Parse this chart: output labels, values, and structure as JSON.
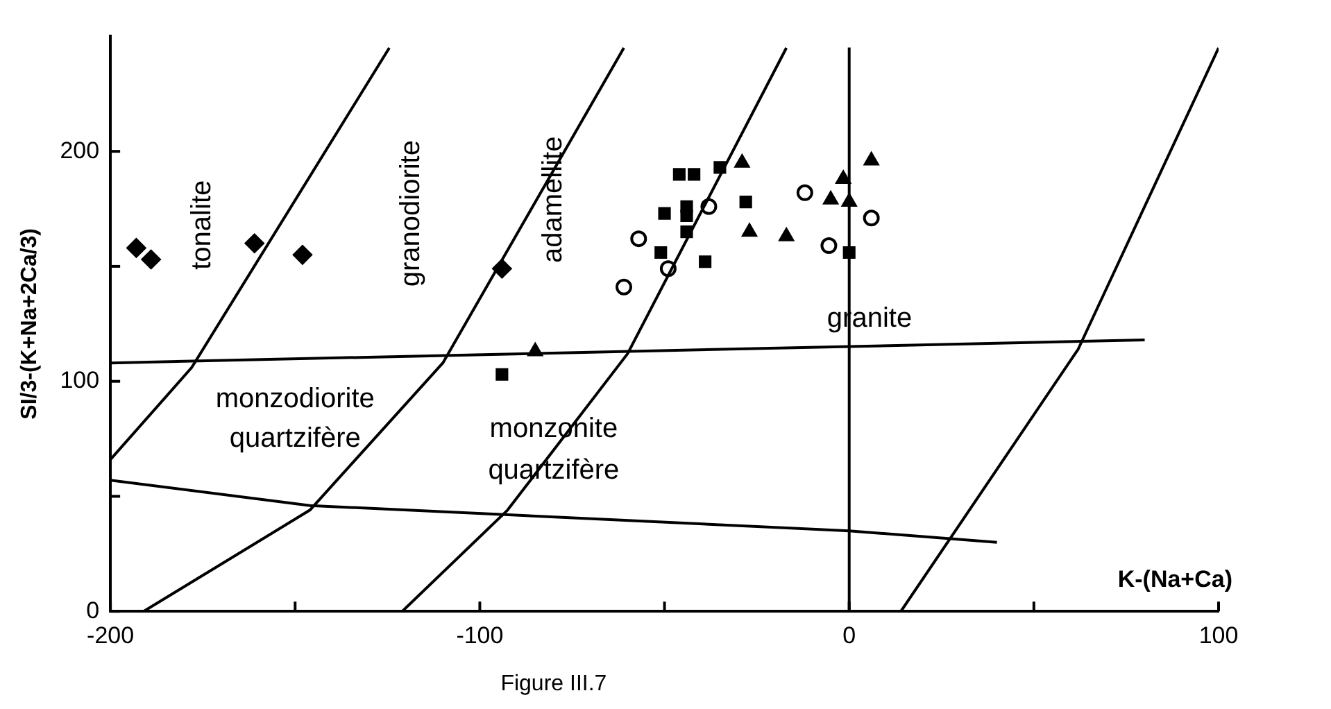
{
  "chart_data": {
    "type": "scatter",
    "xlabel": "K-(Na+Ca)",
    "ylabel": "SI/3-(K+Na+2Ca/3)",
    "xlim": [
      -200,
      100
    ],
    "ylim": [
      0,
      250
    ],
    "xticks": [
      -200,
      {
        "value": -150,
        "label": null
      },
      -100,
      {
        "value": -50,
        "label": null
      },
      0,
      {
        "value": 50,
        "label": null
      },
      100
    ],
    "yticks": [
      0,
      {
        "value": 50,
        "label": null
      },
      100,
      {
        "value": 150,
        "label": null
      },
      200
    ],
    "grid": false,
    "legend": false,
    "series": [
      {
        "type": "line",
        "marker": "none",
        "color": "#000000",
        "x": [
          -200,
          -178,
          -124.5
        ],
        "values": [
          66,
          106,
          245
        ]
      },
      {
        "type": "line",
        "marker": "none",
        "color": "#000000",
        "x": [
          -191,
          -146,
          -110,
          -61
        ],
        "values": [
          0,
          44,
          108,
          245
        ]
      },
      {
        "type": "line",
        "marker": "none",
        "color": "#000000",
        "x": [
          -121,
          -92.5,
          -60,
          -17
        ],
        "values": [
          0,
          44,
          112,
          245
        ]
      },
      {
        "type": "line",
        "marker": "none",
        "color": "#000000",
        "x": [
          14,
          62,
          100
        ],
        "values": [
          0,
          114,
          245
        ]
      },
      {
        "type": "line",
        "marker": "none",
        "color": "#000000",
        "x": [
          -200,
          80
        ],
        "values": [
          108,
          118
        ]
      },
      {
        "type": "line",
        "marker": "none",
        "color": "#000000",
        "x": [
          -200,
          -146,
          0,
          40
        ],
        "values": [
          57,
          46,
          35,
          30
        ]
      },
      {
        "marker": "diamond",
        "color": "#000000",
        "x": [
          -193,
          -189,
          -161,
          -148,
          -94
        ],
        "values": [
          158,
          153,
          160,
          155,
          149
        ]
      },
      {
        "marker": "square",
        "color": "#000000",
        "x": [
          -94,
          -46,
          -42,
          -35,
          -44,
          -44
        ],
        "values": [
          103,
          190,
          190,
          193,
          176,
          172
        ]
      },
      {
        "marker": "square",
        "color": "#000000",
        "x": [
          -50,
          -28,
          -44,
          -51,
          -39,
          0
        ],
        "values": [
          173,
          178,
          165,
          156,
          152,
          156
        ]
      },
      {
        "marker": "circle",
        "color": "#000000",
        "x": [
          -61,
          -57,
          -49,
          -38,
          -12,
          6,
          -5.5
        ],
        "values": [
          141,
          162,
          149,
          176,
          182,
          171,
          159
        ]
      },
      {
        "marker": "triangle",
        "color": "#000000",
        "x": [
          -85,
          -27,
          -17,
          -29,
          6,
          -1.6,
          -5,
          0
        ],
        "values": [
          113,
          165,
          163,
          195,
          196,
          188,
          179,
          178
        ]
      }
    ],
    "annotations": [
      "tonalite",
      "granodiorite",
      "adamellite",
      "granite",
      "monzodiorite",
      "quartzifère",
      "monzonite",
      "quartzifère",
      "Figure III.7"
    ],
    "ref_lines": [
      {
        "axis": "x",
        "value": 0,
        "color": "#000000"
      }
    ]
  }
}
